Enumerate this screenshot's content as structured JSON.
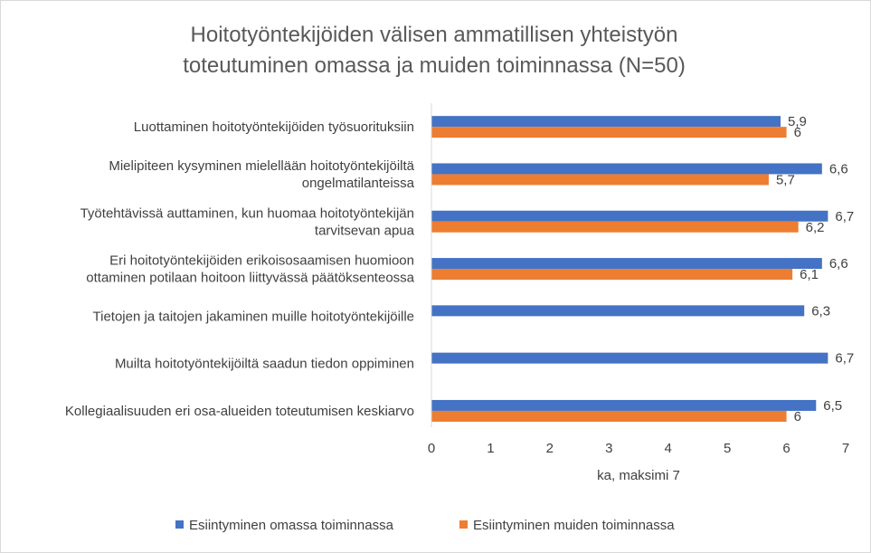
{
  "chart_data": {
    "type": "bar",
    "orientation": "horizontal",
    "title": "Hoitotyöntekijöiden välisen ammatillisen yhteistyön toteutuminen omassa ja muiden toiminnassa (N=50)",
    "title_lines": [
      "Hoitotyöntekijöiden välisen ammatillisen yhteistyön",
      "toteutuminen omassa ja muiden toiminnassa (N=50)"
    ],
    "xlabel": "ka, maksimi 7",
    "ylabel": "",
    "xlim": [
      0,
      7
    ],
    "xticks": [
      "0",
      "1",
      "2",
      "3",
      "4",
      "5",
      "6",
      "7"
    ],
    "grid": false,
    "legend_position": "bottom",
    "categories": [
      "Luottaminen hoitotyöntekijöiden työsuorituksiin",
      "Mielipiteen kysyminen mielellään hoitotyöntekijöiltä ongelmatilanteissa",
      "Työtehtävissä auttaminen, kun huomaa hoitotyöntekijän tarvitsevan apua",
      "Eri hoitotyöntekijöiden erikoisosaamisen huomioon ottaminen potilaan hoitoon liittyvässä päätöksenteossa",
      "Tietojen ja taitojen jakaminen muille hoitotyöntekijöille",
      "Muilta hoitotyöntekijöiltä saadun tiedon oppiminen",
      "Kollegiaalisuuden eri osa-alueiden toteutumisen keskiarvo"
    ],
    "category_lines": [
      [
        "Luottaminen hoitotyöntekijöiden työsuorituksiin"
      ],
      [
        "Mielipiteen kysyminen mielellään hoitotyöntekijöiltä",
        "ongelmatilanteissa"
      ],
      [
        "Työtehtävissä auttaminen, kun huomaa hoitotyöntekijän",
        "tarvitsevan apua"
      ],
      [
        "Eri hoitotyöntekijöiden erikoisosaamisen huomioon",
        "ottaminen potilaan hoitoon liittyvässä päätöksenteossa"
      ],
      [
        "Tietojen ja taitojen jakaminen muille hoitotyöntekijöille"
      ],
      [
        "Muilta hoitotyöntekijöiltä saadun tiedon oppiminen"
      ],
      [
        "Kollegiaalisuuden eri osa-alueiden toteutumisen keskiarvo"
      ]
    ],
    "series": [
      {
        "name": "Esiintyminen omassa toiminnassa",
        "color": "#4472c4",
        "values": [
          5.9,
          6.6,
          6.7,
          6.6,
          6.3,
          6.7,
          6.5
        ],
        "labels": [
          "5,9",
          "6,6",
          "6,7",
          "6,6",
          "6,3",
          "6,7",
          "6,5"
        ]
      },
      {
        "name": "Esiintyminen muiden toiminnassa",
        "color": "#ed7d31",
        "values": [
          6,
          5.7,
          6.2,
          6.1,
          null,
          null,
          6
        ],
        "labels": [
          "6",
          "5,7",
          "6,2",
          "6,1",
          null,
          null,
          "6"
        ]
      }
    ]
  }
}
